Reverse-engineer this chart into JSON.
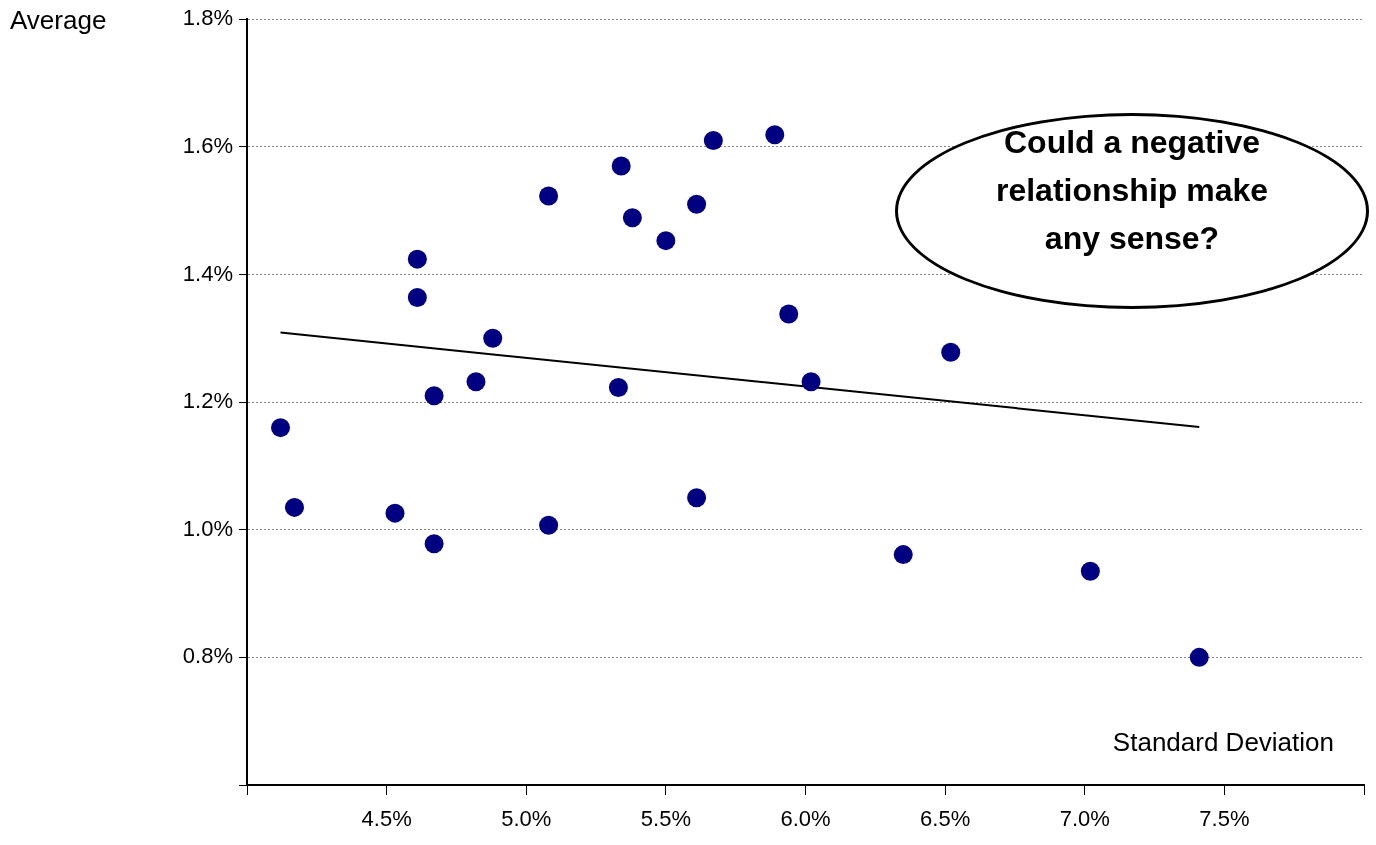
{
  "chart_data": {
    "type": "scatter",
    "ylabel": "Average",
    "xlabel": "Standard Deviation",
    "annotations": [
      "Could a negative relationship make any sense?"
    ],
    "xlim": [
      4.0,
      8.0
    ],
    "xticks": [
      {
        "value": 4.0,
        "label": null
      },
      {
        "value": 4.5,
        "label": "4.5%"
      },
      {
        "value": 5.0,
        "label": "5.0%"
      },
      {
        "value": 5.5,
        "label": "5.5%"
      },
      {
        "value": 6.0,
        "label": "6.0%"
      },
      {
        "value": 6.5,
        "label": "6.5%"
      },
      {
        "value": 7.0,
        "label": "7.0%"
      },
      {
        "value": 7.5,
        "label": "7.5%"
      },
      {
        "value": 8.0,
        "label": null
      }
    ],
    "ylim": [
      0.6,
      1.8
    ],
    "yticks": [
      {
        "value": 0.6,
        "label": null
      },
      {
        "value": 0.8,
        "label": "0.8%"
      },
      {
        "value": 1.0,
        "label": "1.0%"
      },
      {
        "value": 1.2,
        "label": "1.2%"
      },
      {
        "value": 1.4,
        "label": "1.4%"
      },
      {
        "value": 1.6,
        "label": "1.6%"
      },
      {
        "value": 1.8,
        "label": "1.8%"
      }
    ],
    "grid": "y",
    "legend": false,
    "marker": "circle",
    "series": [
      {
        "type": "scatter",
        "color": "#000080",
        "x": [
          4.12,
          4.17,
          4.61,
          4.61,
          4.53,
          4.67,
          4.67,
          4.82,
          4.88,
          5.08,
          5.08,
          5.34,
          5.38,
          5.5,
          5.61,
          5.61,
          5.67,
          5.89,
          5.94,
          6.02,
          5.33,
          6.52,
          6.35,
          7.02,
          7.41
        ],
        "values": [
          1.16,
          1.035,
          1.424,
          1.364,
          1.026,
          1.21,
          0.978,
          1.232,
          1.3,
          1.523,
          1.007,
          1.57,
          1.489,
          1.453,
          1.51,
          1.05,
          1.61,
          1.619,
          1.338,
          1.232,
          1.223,
          1.278,
          0.961,
          0.935,
          0.8
        ]
      },
      {
        "type": "line",
        "color": "#000000",
        "marker": "none",
        "x": [
          4.12,
          7.41
        ],
        "values": [
          1.309,
          1.161
        ]
      }
    ]
  }
}
